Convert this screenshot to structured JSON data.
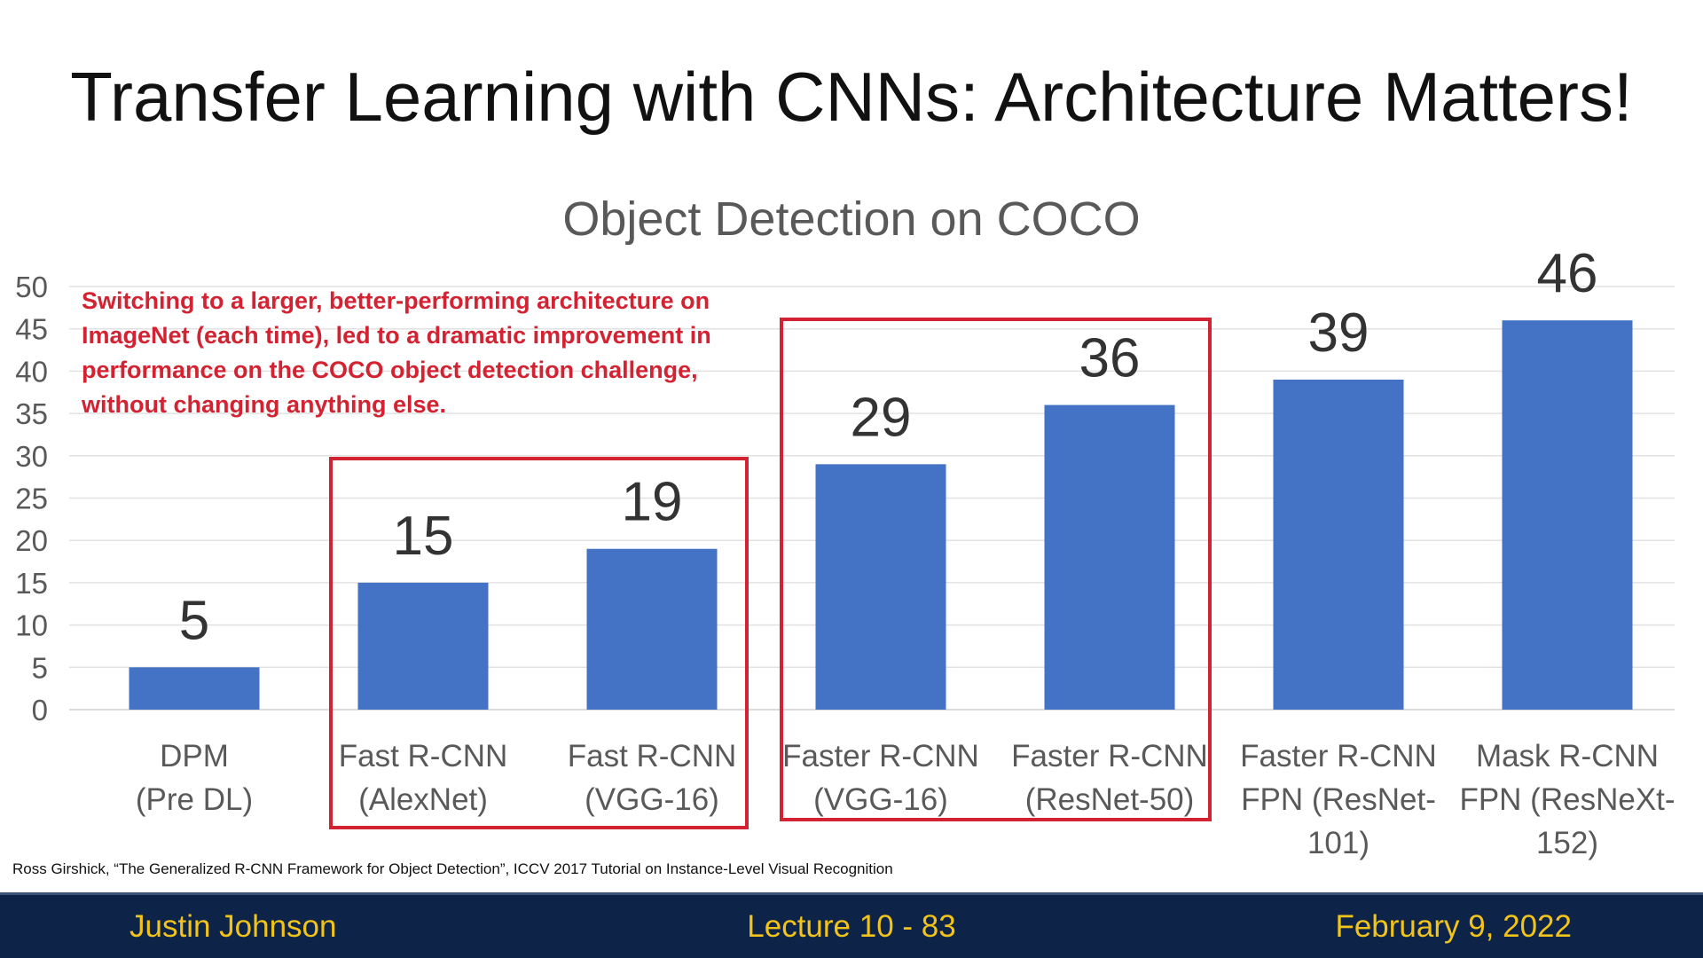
{
  "slide": {
    "title": "Transfer Learning with CNNs: Architecture Matters!",
    "annotation": "Switching to a larger, better-performing architecture on ImageNet (each time), led to a dramatic improvement in performance on the COCO object detection challenge, without changing anything else.",
    "citation": "Ross Girshick, “The Generalized R-CNN Framework for Object Detection”, ICCV 2017 Tutorial on Instance-Level Visual Recognition"
  },
  "footer": {
    "author": "Justin Johnson",
    "lecture": "Lecture 10 - 83",
    "date": "February 9, 2022"
  },
  "colors": {
    "bar": "#4472c4",
    "highlight": "#d32332",
    "footer_bg": "#0d2347",
    "footer_text": "#f2c319"
  },
  "chart_data": {
    "type": "bar",
    "title": "Object Detection on COCO",
    "categories": [
      [
        "DPM",
        "(Pre DL)"
      ],
      [
        "Fast R-CNN",
        "(AlexNet)"
      ],
      [
        "Fast R-CNN",
        "(VGG-16)"
      ],
      [
        "Faster R-CNN",
        "(VGG-16)"
      ],
      [
        "Faster R-CNN",
        "(ResNet-50)"
      ],
      [
        "Faster R-CNN",
        "FPN (ResNet-",
        "101)"
      ],
      [
        "Mask R-CNN",
        "FPN (ResNeXt-",
        "152)"
      ]
    ],
    "values": [
      5,
      15,
      19,
      29,
      36,
      39,
      46
    ],
    "ylim": [
      0,
      50
    ],
    "yticks": [
      0,
      5,
      10,
      15,
      20,
      25,
      30,
      35,
      40,
      45,
      50
    ],
    "grid": true,
    "xlabel": "",
    "ylabel": "",
    "highlight_groups": [
      [
        1,
        2
      ],
      [
        3,
        4
      ]
    ]
  }
}
